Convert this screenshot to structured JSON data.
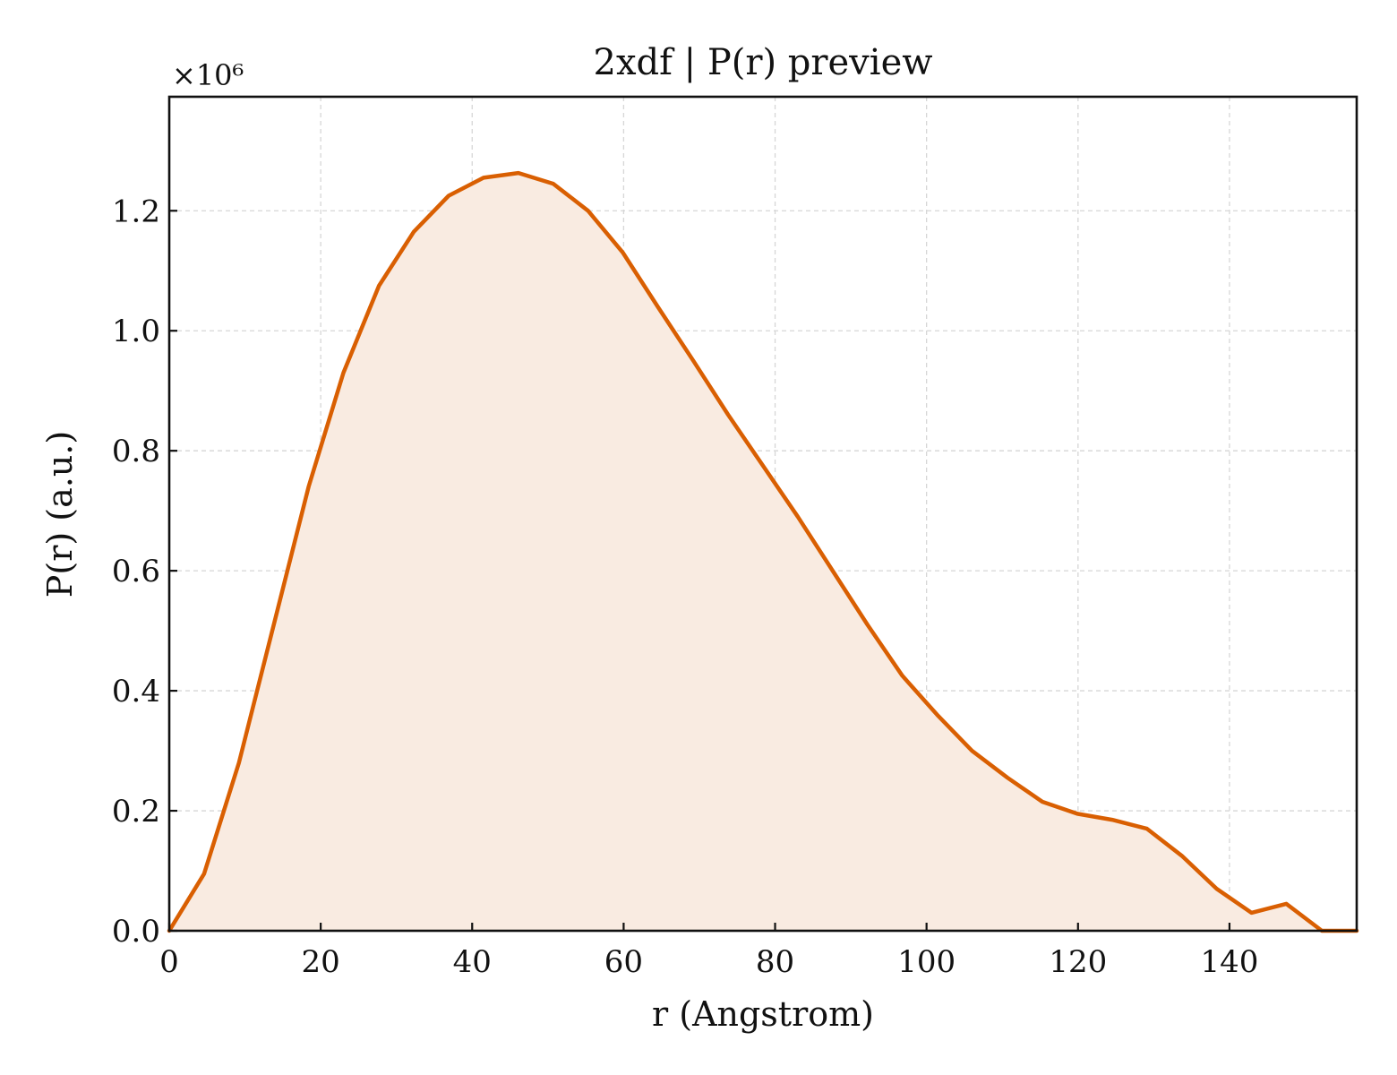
{
  "chart_data": {
    "type": "area",
    "title": "2xdf | P(r) preview",
    "xlabel": "r (Angstrom)",
    "ylabel": "P(r) (a.u.)",
    "y_offset_label": "×10⁶",
    "xlim": [
      0,
      156.8
    ],
    "ylim": [
      0,
      1.39
    ],
    "xticks": [
      0,
      20,
      40,
      60,
      80,
      100,
      120,
      140
    ],
    "yticks": [
      0.0,
      0.2,
      0.4,
      0.6,
      0.8,
      1.0,
      1.2
    ],
    "xtick_labels": [
      "0",
      "20",
      "40",
      "60",
      "80",
      "100",
      "120",
      "140"
    ],
    "ytick_labels": [
      "0.0",
      "0.2",
      "0.4",
      "0.6",
      "0.8",
      "1.0",
      "1.2"
    ],
    "grid": true,
    "line_color": "#d95f02",
    "fill_color": "#f9ebe1",
    "series": [
      {
        "x": [
          0,
          4.6,
          9.2,
          13.8,
          18.4,
          23.0,
          27.7,
          32.3,
          36.9,
          41.5,
          46.1,
          50.7,
          55.3,
          59.9,
          64.5,
          69.2,
          73.8,
          78.4,
          83.0,
          87.6,
          92.2,
          96.8,
          101.4,
          106.0,
          110.7,
          115.3,
          119.9,
          124.5,
          129.1,
          133.7,
          138.3,
          142.9,
          147.5,
          152.2,
          156.8
        ],
        "y": [
          0.0,
          0.095,
          0.28,
          0.51,
          0.74,
          0.93,
          1.075,
          1.165,
          1.225,
          1.255,
          1.263,
          1.245,
          1.2,
          1.13,
          1.04,
          0.95,
          0.86,
          0.775,
          0.69,
          0.6,
          0.51,
          0.425,
          0.36,
          0.3,
          0.255,
          0.215,
          0.195,
          0.185,
          0.17,
          0.125,
          0.07,
          0.03,
          0.045,
          0.0,
          0.0
        ]
      }
    ]
  }
}
